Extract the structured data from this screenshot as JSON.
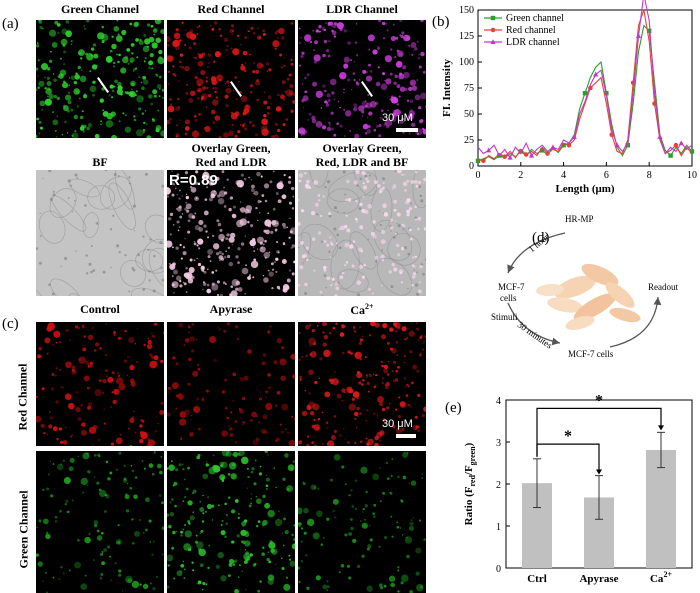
{
  "panel_letters": {
    "a": "(a)",
    "b": "(b)",
    "c": "(c)",
    "d": "(d)",
    "e": "(e)"
  },
  "panel_a": {
    "labels": {
      "green": "Green Channel",
      "red": "Red Channel",
      "ldr": "LDR Channel",
      "bf": "BF",
      "overlay1_l1": "Overlay Green,",
      "overlay1_l2": "Red and LDR",
      "overlay2_l1": "Overlay Green,",
      "overlay2_l2": "Red, LDR and BF"
    },
    "scale": "30 μM",
    "r_value": "R=0.89",
    "colors": {
      "green": "#2fd12f",
      "red": "#e01818",
      "ldr": "#d040e0"
    }
  },
  "panel_c": {
    "labels": {
      "control": "Control",
      "apyrase": "Apyrase",
      "ca_base": "Ca",
      "ca_sup": "2+"
    },
    "row_labels": {
      "red": "Red Channel",
      "green": "Green Channel"
    },
    "scale": "30 μM"
  },
  "panel_d": {
    "hrmp": "HR-MP",
    "one_hour": "1 hour",
    "mcf7_l1": "MCF-7",
    "mcf7_l2": "cells",
    "stimuli": "Stimuli",
    "thirty": "30 minutes",
    "mcf7_b": "MCF-7 cells",
    "readout": "Readout"
  },
  "chart_data": [
    {
      "type": "line",
      "title": "",
      "xlabel": "Length (μm)",
      "ylabel": "FI. Intensity",
      "xlim": [
        0,
        10
      ],
      "ylim": [
        0,
        150
      ],
      "xticks": [
        0,
        2,
        4,
        6,
        8,
        10
      ],
      "yticks": [
        0,
        25,
        50,
        75,
        100,
        125,
        150
      ],
      "legend_position": "top-left",
      "x": [
        0,
        0.25,
        0.5,
        0.75,
        1,
        1.25,
        1.5,
        1.75,
        2,
        2.25,
        2.5,
        2.75,
        3,
        3.25,
        3.5,
        3.75,
        4,
        4.25,
        4.5,
        4.75,
        5,
        5.25,
        5.5,
        5.75,
        6,
        6.25,
        6.5,
        6.75,
        7,
        7.25,
        7.5,
        7.75,
        8,
        8.25,
        8.5,
        8.75,
        9,
        9.25,
        9.5,
        9.75,
        10
      ],
      "series": [
        {
          "name": "Green channel",
          "color": "#2c9e2c",
          "marker": "square",
          "values": [
            5,
            7,
            9,
            6,
            10,
            8,
            12,
            9,
            14,
            10,
            16,
            12,
            15,
            11,
            18,
            13,
            20,
            22,
            30,
            55,
            70,
            85,
            95,
            100,
            70,
            40,
            18,
            10,
            20,
            60,
            110,
            135,
            130,
            80,
            30,
            15,
            10,
            18,
            12,
            20,
            14
          ]
        },
        {
          "name": "Red channel",
          "color": "#e0443a",
          "marker": "circle",
          "values": [
            6,
            5,
            10,
            7,
            12,
            9,
            14,
            8,
            16,
            11,
            14,
            10,
            18,
            12,
            16,
            14,
            22,
            20,
            25,
            45,
            60,
            75,
            80,
            85,
            60,
            30,
            14,
            12,
            25,
            80,
            135,
            150,
            120,
            60,
            25,
            12,
            15,
            20,
            10,
            18,
            12
          ]
        },
        {
          "name": "LDR channel",
          "color": "#c038c8",
          "marker": "triangle",
          "values": [
            18,
            12,
            15,
            20,
            10,
            16,
            8,
            18,
            12,
            22,
            10,
            16,
            20,
            14,
            18,
            16,
            25,
            22,
            28,
            50,
            62,
            78,
            88,
            92,
            68,
            35,
            20,
            14,
            22,
            70,
            125,
            165,
            140,
            70,
            28,
            12,
            18,
            14,
            22,
            16,
            20
          ]
        }
      ]
    },
    {
      "type": "bar",
      "title": "",
      "xlabel": "",
      "ylabel": "Ratio (F_red/F_green)",
      "ylabel_parts": {
        "base": "Ratio (F",
        "sub1": "red",
        "mid": "/F",
        "sub2": "green",
        "end": ")"
      },
      "categories": [
        "Ctrl",
        "Apyrase",
        "Ca"
      ],
      "ca_superscript": "2+",
      "values": [
        2.02,
        1.68,
        2.81
      ],
      "errors": [
        0.58,
        0.52,
        0.42
      ],
      "ylim": [
        0,
        4
      ],
      "yticks": [
        0,
        1,
        2,
        3,
        4
      ],
      "bar_color": "#c0c0c0",
      "significance": [
        {
          "from": "Ctrl",
          "to": "Apyrase",
          "label": "*"
        },
        {
          "from": "Ctrl",
          "to": "Ca",
          "label": "*"
        }
      ]
    }
  ]
}
